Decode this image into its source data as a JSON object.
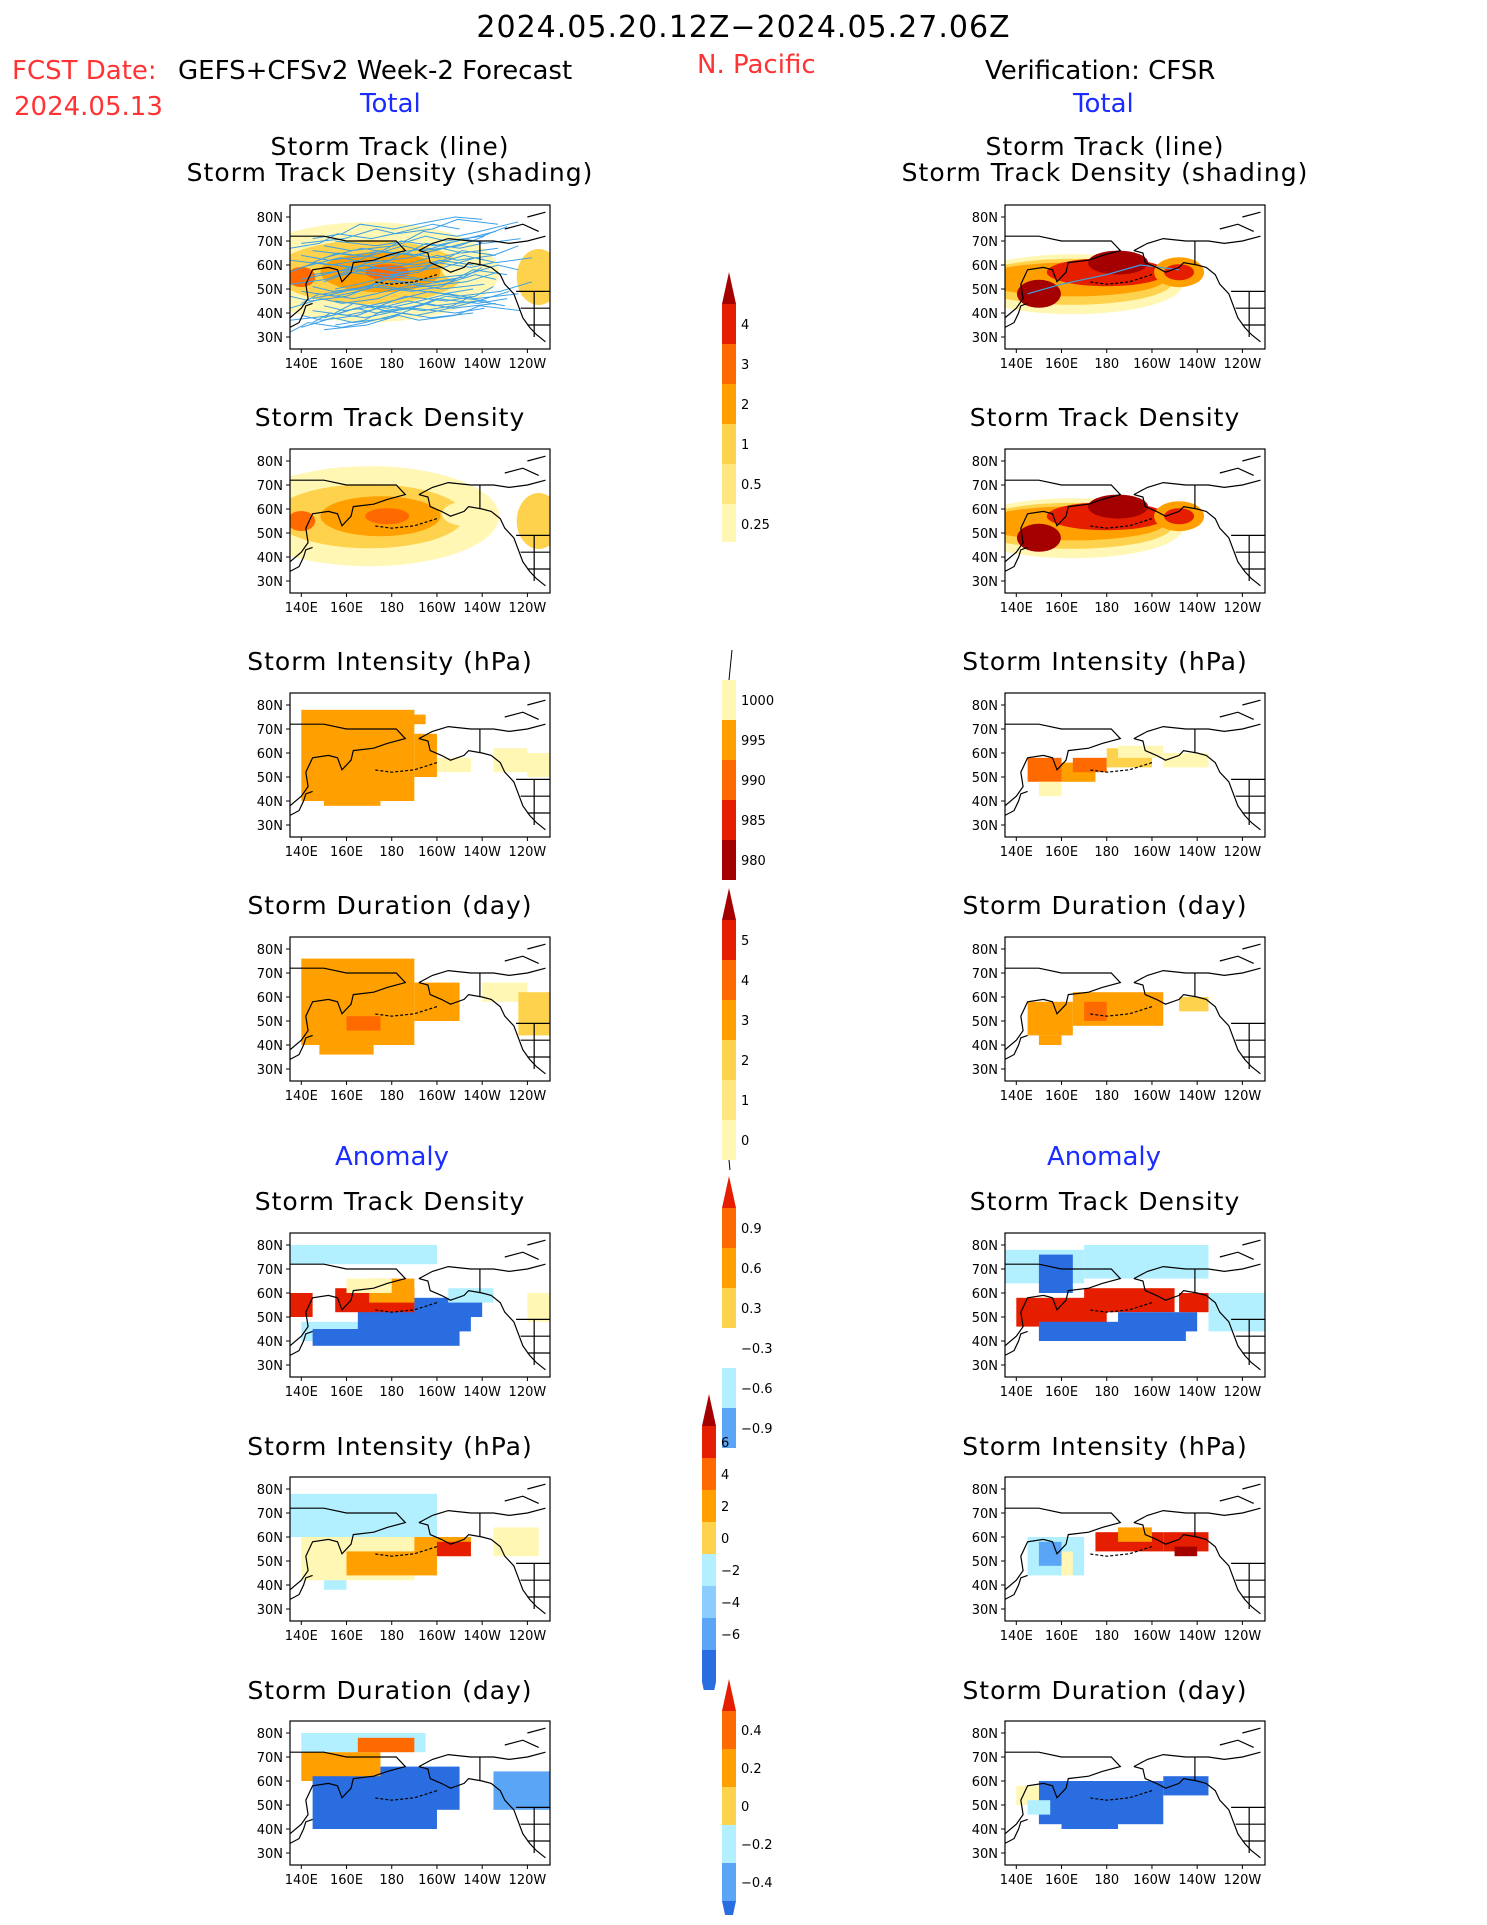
{
  "header": {
    "date_range": "2024.05.20.12Z−2024.05.27.06Z",
    "fcst_label": "FCST Date:",
    "fcst_model": "GEFS+CFSv2 Week-2 Forecast",
    "fcst_date": "2024.05.13",
    "region": "N. Pacific",
    "verification": "Verification: CFSR",
    "total_left": "Total",
    "total_right": "Total",
    "anomaly_left": "Anomaly",
    "anomaly_right": "Anomaly"
  },
  "panel_titles": {
    "track_line": "Storm Track (line)",
    "track_shading": "Storm Track Density (shading)",
    "density": "Storm Track Density",
    "intensity": "Storm Intensity (hPa)",
    "duration": "Storm Duration (day)"
  },
  "axes": {
    "lon_labels": [
      "140E",
      "160E",
      "180",
      "160W",
      "140W",
      "120W"
    ],
    "lat_labels": [
      "80N",
      "70N",
      "60N",
      "50N",
      "40N",
      "30N"
    ]
  },
  "colorbars": {
    "density_total": [
      "4",
      "3",
      "2",
      "1",
      "0.5",
      "0.25"
    ],
    "intensity_total": [
      "1000",
      "995",
      "990",
      "985",
      "980"
    ],
    "duration_total": [
      "5",
      "4",
      "3",
      "2",
      "1",
      "0"
    ],
    "density_anom": [
      "0.9",
      "0.6",
      "0.3",
      "−0.3",
      "−0.6",
      "−0.9"
    ],
    "intensity_anom": [
      "6",
      "4",
      "2",
      "0",
      "−2",
      "−4",
      "−6"
    ],
    "duration_anom": [
      "0.4",
      "0.2",
      "0",
      "−0.2",
      "−0.4"
    ]
  },
  "colors": {
    "pale_yellow": "#fff7b3",
    "light_orange": "#ffd24d",
    "orange": "#ffa000",
    "dark_orange": "#ff6a00",
    "red": "#e61e00",
    "dark_red": "#a50000",
    "light_blue": "#b3f0ff",
    "mid_blue": "#5aa5f5",
    "blue": "#2a6de0",
    "dark_blue": "#1a46c8",
    "track_line": "#3ca0e6"
  },
  "chart_data": [
    {
      "type": "heatmap",
      "title": "Storm Track Density (shading)",
      "subtitle": "Storm Track (line)",
      "source": "GEFS+CFSv2 Week-2 Forecast",
      "section": "Total",
      "lon_range": [
        "140E",
        "120W"
      ],
      "lat_range": [
        "30N",
        "80N"
      ],
      "max_region": "55N-60N, 170E-180"
    },
    {
      "type": "heatmap",
      "title": "Storm Track Density (shading)",
      "subtitle": "Storm Track (line)",
      "source": "CFSR",
      "section": "Total",
      "lon_range": [
        "140E",
        "120W"
      ],
      "lat_range": [
        "30N",
        "80N"
      ]
    },
    {
      "type": "heatmap",
      "title": "Storm Track Density",
      "source": "GEFS+CFSv2 Week-2 Forecast",
      "section": "Total",
      "levels": [
        0.25,
        0.5,
        1,
        2,
        3,
        4
      ]
    },
    {
      "type": "heatmap",
      "title": "Storm Track Density",
      "source": "CFSR",
      "section": "Total",
      "levels": [
        0.25,
        0.5,
        1,
        2,
        3,
        4
      ]
    },
    {
      "type": "heatmap",
      "title": "Storm Intensity (hPa)",
      "source": "GEFS+CFSv2 Week-2 Forecast",
      "section": "Total",
      "levels": [
        980,
        985,
        990,
        995,
        1000
      ]
    },
    {
      "type": "heatmap",
      "title": "Storm Intensity (hPa)",
      "source": "CFSR",
      "section": "Total",
      "levels": [
        980,
        985,
        990,
        995,
        1000
      ]
    },
    {
      "type": "heatmap",
      "title": "Storm Duration (day)",
      "source": "GEFS+CFSv2 Week-2 Forecast",
      "section": "Total",
      "levels": [
        0,
        1,
        2,
        3,
        4,
        5
      ]
    },
    {
      "type": "heatmap",
      "title": "Storm Duration (day)",
      "source": "CFSR",
      "section": "Total",
      "levels": [
        0,
        1,
        2,
        3,
        4,
        5
      ]
    },
    {
      "type": "heatmap",
      "title": "Storm Track Density",
      "source": "GEFS+CFSv2 Week-2 Forecast",
      "section": "Anomaly",
      "levels": [
        -0.9,
        -0.6,
        -0.3,
        0.3,
        0.6,
        0.9
      ]
    },
    {
      "type": "heatmap",
      "title": "Storm Track Density",
      "source": "CFSR",
      "section": "Anomaly",
      "levels": [
        -0.9,
        -0.6,
        -0.3,
        0.3,
        0.6,
        0.9
      ]
    },
    {
      "type": "heatmap",
      "title": "Storm Intensity (hPa)",
      "source": "GEFS+CFSv2 Week-2 Forecast",
      "section": "Anomaly",
      "levels": [
        -6,
        -4,
        -2,
        0,
        2,
        4,
        6
      ]
    },
    {
      "type": "heatmap",
      "title": "Storm Intensity (hPa)",
      "source": "CFSR",
      "section": "Anomaly",
      "levels": [
        -6,
        -4,
        -2,
        0,
        2,
        4,
        6
      ]
    },
    {
      "type": "heatmap",
      "title": "Storm Duration (day)",
      "source": "GEFS+CFSv2 Week-2 Forecast",
      "section": "Anomaly",
      "levels": [
        -0.4,
        -0.2,
        0,
        0.2,
        0.4
      ]
    },
    {
      "type": "heatmap",
      "title": "Storm Duration (day)",
      "source": "CFSR",
      "section": "Anomaly",
      "levels": [
        -0.4,
        -0.2,
        0,
        0.2,
        0.4
      ]
    }
  ]
}
